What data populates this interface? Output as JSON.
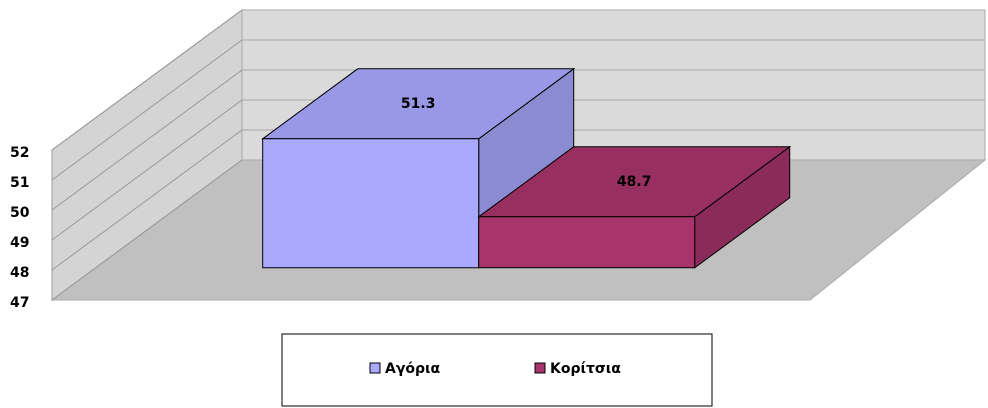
{
  "chart_data": {
    "type": "bar3d",
    "series": [
      {
        "name": "Αγόρια",
        "color": "#a9a9ff",
        "values": [
          51.3
        ]
      },
      {
        "name": "Κορίτσια",
        "color": "#a8346c",
        "values": [
          48.7
        ]
      }
    ],
    "ylim": [
      47,
      52
    ],
    "yticks": [
      47,
      48,
      49,
      50,
      51,
      52
    ],
    "grid": true,
    "legend": "bottom"
  }
}
